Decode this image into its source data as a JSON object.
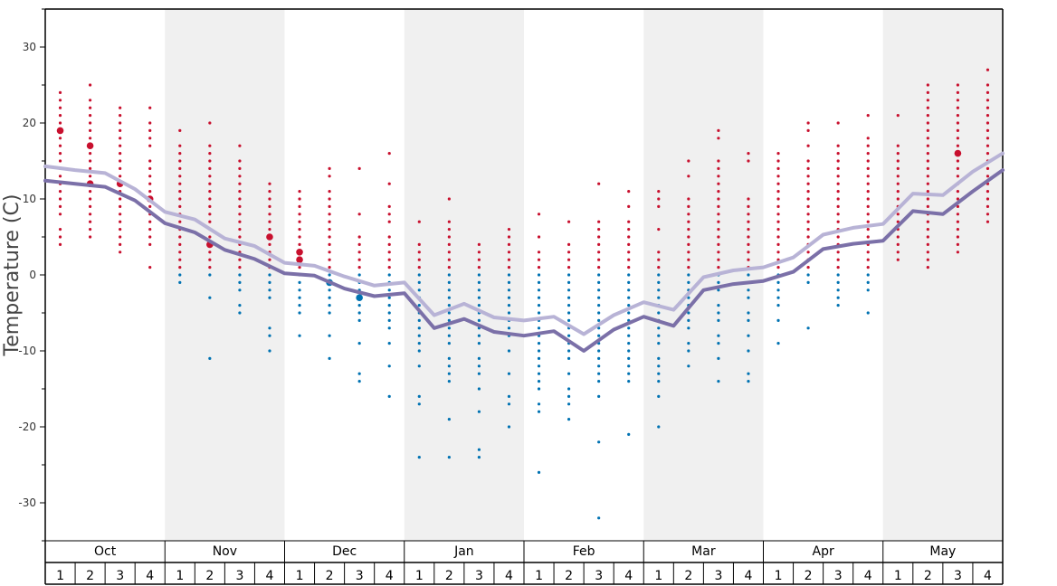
{
  "chart_data": {
    "type": "scatter",
    "ylabel": "Temperature (C)",
    "ylim": [
      -35,
      35
    ],
    "yticks": [
      -30,
      -20,
      -10,
      0,
      10,
      20,
      30
    ],
    "yticks_minor": [
      -35,
      -25,
      -15,
      -5,
      5,
      15,
      25,
      35
    ],
    "months": [
      "Oct",
      "Nov",
      "Dec",
      "Jan",
      "Feb",
      "Mar",
      "Apr",
      "May"
    ],
    "weeks": [
      "1",
      "2",
      "3",
      "4"
    ],
    "grid": false,
    "alternating_month_shading": true,
    "colors": {
      "warm_dot": "#c8102e",
      "cold_dot": "#0072b2",
      "upper_line": "#b8b3d6",
      "lower_line": "#7b70a8",
      "shade": "#f0f0f0"
    },
    "series": [
      {
        "values": [
          14.3,
          13.8,
          13.4,
          11.3,
          8.3,
          7.3,
          4.8,
          3.8,
          1.6,
          1.2,
          -0.2,
          -1.4,
          -1.0,
          -5.3,
          -3.8,
          -5.6,
          -6.0,
          -5.5,
          -7.8,
          -5.3,
          -3.6,
          -4.6,
          -0.3,
          0.6,
          1.0,
          2.3,
          5.3,
          6.2,
          6.7,
          10.7,
          10.5,
          13.6,
          16.0
        ]
      },
      {
        "values": [
          12.4,
          12.0,
          11.6,
          9.8,
          6.8,
          5.6,
          3.3,
          2.1,
          0.2,
          -0.1,
          -1.8,
          -2.8,
          -2.4,
          -7.0,
          -5.8,
          -7.5,
          -8.0,
          -7.4,
          -10.0,
          -7.2,
          -5.5,
          -6.7,
          -2.0,
          -1.2,
          -0.8,
          0.4,
          3.4,
          4.1,
          4.5,
          8.4,
          8.0,
          11.0,
          13.8
        ]
      }
    ],
    "weekly_observations": [
      {
        "week": "Oct 1",
        "values": [
          24,
          23,
          22,
          21,
          20,
          19,
          19,
          18,
          17,
          16,
          15,
          14,
          13,
          12,
          11,
          10,
          9,
          8,
          6,
          5,
          4
        ]
      },
      {
        "week": "Oct 2",
        "values": [
          25,
          23,
          22,
          21,
          20,
          19,
          18,
          17,
          17,
          16,
          15,
          14,
          13,
          12,
          12,
          11,
          10,
          9,
          8,
          7,
          6,
          5
        ]
      },
      {
        "week": "Oct 3",
        "values": [
          22,
          21,
          20,
          19,
          18,
          17,
          16,
          15,
          14,
          13,
          12,
          12,
          11,
          10,
          9,
          8,
          7,
          6,
          5,
          4,
          3
        ]
      },
      {
        "week": "Oct 4",
        "values": [
          22,
          20,
          19,
          18,
          17,
          15,
          14,
          13,
          12,
          11,
          10,
          10,
          9,
          8,
          7,
          6,
          5,
          4,
          1
        ]
      },
      {
        "week": "Nov 1",
        "values": [
          19,
          17,
          16,
          15,
          14,
          13,
          12,
          11,
          10,
          9,
          8,
          7,
          6,
          5,
          4,
          3,
          2,
          1,
          0,
          -1
        ]
      },
      {
        "week": "Nov 2",
        "values": [
          20,
          17,
          16,
          15,
          14,
          13,
          12,
          11,
          10,
          9,
          8,
          7,
          6,
          5,
          4,
          4,
          3,
          2,
          1,
          0,
          -3,
          -11
        ]
      },
      {
        "week": "Nov 3",
        "values": [
          17,
          15,
          14,
          13,
          12,
          11,
          10,
          9,
          8,
          7,
          6,
          5,
          4,
          3,
          2,
          1,
          0,
          -1,
          -2,
          -4,
          -5
        ]
      },
      {
        "week": "Nov 4",
        "values": [
          12,
          11,
          10,
          9,
          8,
          7,
          6,
          5,
          5,
          4,
          3,
          2,
          1,
          0,
          -1,
          -2,
          -3,
          -7,
          -8,
          -10
        ]
      },
      {
        "week": "Dec 1",
        "values": [
          11,
          10,
          9,
          8,
          7,
          6,
          5,
          4,
          3,
          3,
          2,
          2,
          1,
          0,
          -1,
          -2,
          -3,
          -4,
          -5,
          -8
        ]
      },
      {
        "week": "Dec 2",
        "values": [
          14,
          13,
          11,
          10,
          9,
          8,
          7,
          6,
          5,
          4,
          3,
          2,
          1,
          0,
          -1,
          -1,
          -2,
          -3,
          -4,
          -5,
          -8,
          -11
        ]
      },
      {
        "week": "Dec 3",
        "values": [
          14,
          8,
          5,
          4,
          3,
          2,
          1,
          0,
          -1,
          -2,
          -3,
          -3,
          -4,
          -5,
          -6,
          -9,
          -13,
          -14
        ]
      },
      {
        "week": "Dec 4",
        "values": [
          16,
          12,
          9,
          8,
          7,
          5,
          4,
          3,
          2,
          1,
          0,
          -1,
          -2,
          -3,
          -4,
          -5,
          -6,
          -7,
          -9,
          -12,
          -16
        ]
      },
      {
        "week": "Jan 1",
        "values": [
          7,
          4,
          3,
          2,
          1,
          0,
          -1,
          -2,
          -3,
          -4,
          -5,
          -6,
          -7,
          -8,
          -9,
          -10,
          -12,
          -16,
          -17,
          -24
        ]
      },
      {
        "week": "Jan 2",
        "values": [
          10,
          7,
          6,
          5,
          4,
          3,
          2,
          1,
          0,
          -1,
          -2,
          -3,
          -4,
          -5,
          -6,
          -7,
          -8,
          -9,
          -11,
          -12,
          -13,
          -14,
          -19,
          -24
        ]
      },
      {
        "week": "Jan 3",
        "values": [
          4,
          3,
          2,
          1,
          0,
          -1,
          -2,
          -3,
          -4,
          -5,
          -6,
          -7,
          -8,
          -9,
          -11,
          -12,
          -13,
          -15,
          -18,
          -23,
          -24
        ]
      },
      {
        "week": "Jan 4",
        "values": [
          6,
          5,
          4,
          3,
          2,
          1,
          0,
          -1,
          -2,
          -3,
          -4,
          -5,
          -6,
          -7,
          -8,
          -10,
          -13,
          -16,
          -17,
          -20
        ]
      },
      {
        "week": "Feb 1",
        "values": [
          8,
          5,
          3,
          2,
          1,
          0,
          -1,
          -2,
          -3,
          -4,
          -5,
          -6,
          -7,
          -8,
          -9,
          -10,
          -11,
          -12,
          -13,
          -14,
          -15,
          -17,
          -18,
          -26
        ]
      },
      {
        "week": "Feb 2",
        "values": [
          7,
          4,
          3,
          2,
          1,
          0,
          -1,
          -2,
          -3,
          -4,
          -5,
          -6,
          -7,
          -8,
          -9,
          -10,
          -11,
          -13,
          -15,
          -16,
          -17,
          -19
        ]
      },
      {
        "week": "Feb 3",
        "values": [
          12,
          7,
          6,
          5,
          4,
          3,
          2,
          1,
          0,
          -1,
          -2,
          -3,
          -4,
          -5,
          -6,
          -7,
          -8,
          -9,
          -10,
          -11,
          -12,
          -13,
          -14,
          -16,
          -22,
          -32
        ]
      },
      {
        "week": "Feb 4",
        "values": [
          11,
          9,
          7,
          6,
          5,
          4,
          3,
          2,
          1,
          0,
          -1,
          -2,
          -3,
          -4,
          -5,
          -6,
          -7,
          -8,
          -9,
          -10,
          -11,
          -12,
          -13,
          -14,
          -21
        ]
      },
      {
        "week": "Mar 1",
        "values": [
          11,
          10,
          9,
          6,
          3,
          2,
          1,
          0,
          -1,
          -2,
          -3,
          -4,
          -5,
          -6,
          -7,
          -8,
          -9,
          -11,
          -12,
          -13,
          -14,
          -16,
          -20
        ]
      },
      {
        "week": "Mar 2",
        "values": [
          15,
          13,
          10,
          9,
          8,
          7,
          6,
          5,
          4,
          3,
          2,
          1,
          0,
          -1,
          -2,
          -3,
          -4,
          -5,
          -6,
          -7,
          -9,
          -10,
          -12
        ]
      },
      {
        "week": "Mar 3",
        "values": [
          19,
          18,
          15,
          14,
          13,
          12,
          11,
          10,
          9,
          8,
          7,
          6,
          5,
          4,
          3,
          2,
          1,
          0,
          -1,
          -2,
          -4,
          -5,
          -6,
          -8,
          -9,
          -11,
          -14
        ]
      },
      {
        "week": "Mar 4",
        "values": [
          16,
          15,
          10,
          9,
          8,
          7,
          6,
          5,
          4,
          3,
          2,
          1,
          0,
          -1,
          -2,
          -3,
          -5,
          -6,
          -8,
          -10,
          -13,
          -14
        ]
      },
      {
        "week": "Apr 1",
        "values": [
          16,
          15,
          14,
          13,
          12,
          11,
          10,
          9,
          8,
          7,
          6,
          5,
          4,
          3,
          2,
          1,
          0,
          -1,
          -2,
          -3,
          -4,
          -6,
          -9
        ]
      },
      {
        "week": "Apr 2",
        "values": [
          20,
          19,
          17,
          15,
          14,
          13,
          12,
          11,
          10,
          9,
          8,
          7,
          6,
          5,
          4,
          3,
          2,
          1,
          0,
          -1,
          -7
        ]
      },
      {
        "week": "Apr 3",
        "values": [
          20,
          17,
          16,
          15,
          14,
          13,
          12,
          11,
          10,
          9,
          8,
          7,
          6,
          5,
          4,
          3,
          2,
          1,
          0,
          -1,
          -2,
          -3,
          -4
        ]
      },
      {
        "week": "Apr 4",
        "values": [
          21,
          18,
          17,
          16,
          15,
          14,
          13,
          12,
          11,
          10,
          9,
          8,
          7,
          6,
          5,
          4,
          3,
          2,
          1,
          0,
          -1,
          -2,
          -5
        ]
      },
      {
        "week": "May 1",
        "values": [
          21,
          17,
          16,
          15,
          14,
          13,
          12,
          11,
          10,
          9,
          8,
          7,
          6,
          5,
          4,
          3,
          2
        ]
      },
      {
        "week": "May 2",
        "values": [
          25,
          24,
          23,
          22,
          21,
          20,
          19,
          18,
          17,
          16,
          15,
          14,
          13,
          12,
          11,
          10,
          9,
          8,
          7,
          6,
          5,
          4,
          3,
          2,
          1
        ]
      },
      {
        "week": "May 3",
        "values": [
          25,
          24,
          23,
          22,
          21,
          20,
          19,
          18,
          17,
          16,
          16,
          15,
          14,
          13,
          12,
          11,
          10,
          9,
          8,
          7,
          6,
          5,
          4,
          3
        ]
      },
      {
        "week": "May 4",
        "values": [
          27,
          25,
          24,
          23,
          22,
          21,
          20,
          19,
          18,
          17,
          16,
          15,
          14,
          13,
          12,
          11,
          10,
          9,
          8,
          7
        ]
      }
    ]
  }
}
